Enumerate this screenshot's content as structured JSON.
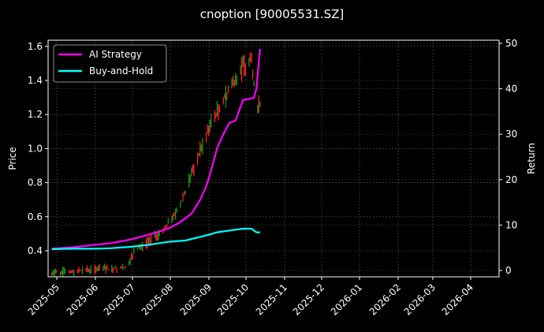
{
  "chart_data": {
    "type": "line",
    "title": "cnoption [90005531.SZ]",
    "xlabel": "",
    "ylabel": "Price",
    "y2label": "Return",
    "ylim": [
      0.25,
      1.63
    ],
    "y2lim": [
      -1.5,
      50.5
    ],
    "yticks": [
      0.4,
      0.6,
      0.8,
      1.0,
      1.2,
      1.4,
      1.6
    ],
    "y2ticks": [
      0,
      10,
      20,
      30,
      40,
      50
    ],
    "xticks": [
      "2025-05",
      "2025-06",
      "2025-07",
      "2025-08",
      "2025-09",
      "2025-10",
      "2025-11",
      "2025-12",
      "2026-01",
      "2026-02",
      "2026-03",
      "2026-04"
    ],
    "grid": true,
    "legend_position": "upper left",
    "legend": [
      "AI Strategy",
      "Buy-and-Hold"
    ],
    "colors": {
      "ai_strategy": "#ff00ff",
      "buy_and_hold": "#00ffff",
      "candle_up": "#ff2020",
      "candle_down": "#1a9a1a",
      "background": "#000000",
      "grid": "#444444"
    },
    "series": [
      {
        "name": "AI Strategy",
        "axis": "right",
        "x": [
          "2025-04-28",
          "2025-05-15",
          "2025-06-01",
          "2025-06-15",
          "2025-07-01",
          "2025-07-15",
          "2025-08-01",
          "2025-08-10",
          "2025-08-20",
          "2025-08-27",
          "2025-09-01",
          "2025-09-05",
          "2025-09-10",
          "2025-09-15",
          "2025-09-20",
          "2025-09-25",
          "2025-10-01",
          "2025-10-10",
          "2025-10-12",
          "2025-10-14",
          "2025-10-15"
        ],
        "values": [
          4.8,
          5.1,
          5.6,
          6.0,
          6.8,
          7.8,
          9.2,
          10.5,
          12.5,
          15.5,
          18.5,
          22.0,
          27.0,
          30.0,
          32.5,
          33.0,
          37.5,
          38.0,
          40.0,
          46.0,
          48.8
        ]
      },
      {
        "name": "Buy-and-Hold",
        "axis": "right",
        "x": [
          "2025-04-28",
          "2025-05-15",
          "2025-06-01",
          "2025-06-15",
          "2025-07-01",
          "2025-07-15",
          "2025-08-01",
          "2025-08-15",
          "2025-09-01",
          "2025-09-10",
          "2025-09-20",
          "2025-10-01",
          "2025-10-08",
          "2025-10-12",
          "2025-10-15"
        ],
        "values": [
          4.7,
          4.8,
          4.8,
          4.9,
          5.2,
          5.6,
          6.3,
          6.6,
          7.7,
          8.4,
          8.8,
          9.2,
          9.2,
          8.4,
          8.4
        ]
      }
    ],
    "candles_price_range": {
      "start": 0.27,
      "peak": 1.57,
      "end": 1.25,
      "start_date": "2025-04-28",
      "end_date": "2025-10-15"
    }
  }
}
